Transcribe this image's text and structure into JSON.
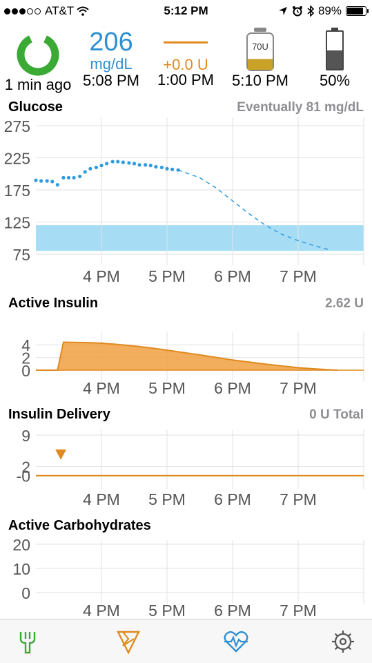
{
  "status_bar": {
    "carrier": "AT&T",
    "time": "5:12 PM",
    "battery_percent": "89%",
    "signal_dots": [
      1,
      1,
      1,
      0,
      0
    ],
    "battery_level": 0.89
  },
  "hud": {
    "loop_status": "1 min ago",
    "glucose_value": "206",
    "glucose_unit": "mg/dL",
    "glucose_time": "5:08 PM",
    "temp_basal_change": "+0.0 U",
    "temp_basal_time": "1:00 PM",
    "reservoir_label": "70U",
    "reservoir_time": "5:10 PM",
    "reservoir_level": 0.3,
    "pump_battery": "50%",
    "pump_battery_level": 0.5
  },
  "sections": {
    "glucose": {
      "title": "Glucose",
      "value": "Eventually 81 mg/dL"
    },
    "active_insulin": {
      "title": "Active Insulin",
      "value": "2.62 U"
    },
    "insulin_delivery": {
      "title": "Insulin Delivery",
      "value": "0 U Total"
    },
    "active_carbs": {
      "title": "Active Carbohydrates"
    }
  },
  "colors": {
    "glucose": "#2f9be0",
    "target_range": "#a6ddf5",
    "insulin": "#f0a040",
    "insulin_line": "#e08a1f",
    "loop_ok": "#3aaa35",
    "grid": "#e2e2e2",
    "axis_text": "#555555"
  },
  "icons": {
    "loop": "loop-ring-icon",
    "reservoir": "reservoir-icon",
    "pump_battery": "pump-battery-icon",
    "carbs_tab": "fork-icon",
    "bolus_tab": "bolus-icon",
    "status_tab": "heart-icon",
    "settings_tab": "gear-icon"
  },
  "chart_data": [
    {
      "name": "Glucose",
      "type": "scatter",
      "x_ticks": [
        "4 PM",
        "5 PM",
        "6 PM",
        "7 PM"
      ],
      "x_tick_hours": [
        16,
        17,
        18,
        19
      ],
      "xlim": [
        15.0,
        20.0
      ],
      "ylim": [
        75,
        275
      ],
      "y_ticks": [
        275,
        225,
        175,
        125,
        75
      ],
      "target_range": [
        80,
        120
      ],
      "series": [
        {
          "kind": "points",
          "x": [
            15.0,
            15.08,
            15.17,
            15.25,
            15.33,
            15.42,
            15.5,
            15.58,
            15.67,
            15.75,
            15.83,
            15.92,
            16.0,
            16.08,
            16.17,
            16.25,
            16.33,
            16.42,
            16.5,
            16.58,
            16.67,
            16.75,
            16.83,
            16.92,
            17.0,
            17.08,
            17.17
          ],
          "y": [
            190,
            189,
            189,
            188,
            183,
            194,
            194,
            194,
            196,
            203,
            208,
            210,
            213,
            216,
            219,
            219,
            218,
            217,
            216,
            214,
            214,
            213,
            211,
            210,
            208,
            207,
            206
          ]
        },
        {
          "kind": "predicted",
          "x": [
            17.17,
            17.5,
            17.75,
            18.0,
            18.25,
            18.5,
            18.75,
            19.0,
            19.25,
            19.5
          ],
          "y": [
            206,
            194,
            178,
            158,
            138,
            120,
            106,
            96,
            88,
            81
          ]
        }
      ]
    },
    {
      "name": "Active Insulin",
      "type": "area",
      "x_ticks": [
        "4 PM",
        "5 PM",
        "6 PM",
        "7 PM"
      ],
      "x_tick_hours": [
        16,
        17,
        18,
        19
      ],
      "xlim": [
        15.0,
        20.0
      ],
      "ylim": [
        0,
        5
      ],
      "y_ticks": [
        4,
        2,
        0
      ],
      "x": [
        15.0,
        15.33,
        15.42,
        15.75,
        16.0,
        16.25,
        16.5,
        16.75,
        17.0,
        17.5,
        18.0,
        18.5,
        19.0,
        19.25,
        19.6
      ],
      "y": [
        0,
        0,
        4.4,
        4.35,
        4.25,
        4.05,
        3.8,
        3.5,
        3.15,
        2.4,
        1.6,
        0.95,
        0.4,
        0.2,
        0.0
      ]
    },
    {
      "name": "Insulin Delivery",
      "type": "line",
      "x_ticks": [
        "4 PM",
        "5 PM",
        "6 PM",
        "7 PM"
      ],
      "x_tick_hours": [
        16,
        17,
        18,
        19
      ],
      "xlim": [
        15.0,
        20.0
      ],
      "ylim": [
        -0.5,
        9
      ],
      "y_ticks": [
        9,
        2,
        0
      ],
      "y_tick_labels": [
        "9",
        "2",
        "-0"
      ],
      "basal_x": [
        15.0,
        20.0
      ],
      "basal_y": [
        0,
        0
      ],
      "bolus_markers": [
        {
          "x": 15.38,
          "y": 4.6
        }
      ]
    },
    {
      "name": "Active Carbohydrates",
      "type": "area",
      "x_ticks": [
        "4 PM",
        "5 PM",
        "6 PM",
        "7 PM"
      ],
      "x_tick_hours": [
        16,
        17,
        18,
        19
      ],
      "xlim": [
        15.0,
        20.0
      ],
      "ylim": [
        0,
        20
      ],
      "y_ticks": [
        20,
        10,
        0
      ],
      "x": [],
      "y": []
    }
  ]
}
